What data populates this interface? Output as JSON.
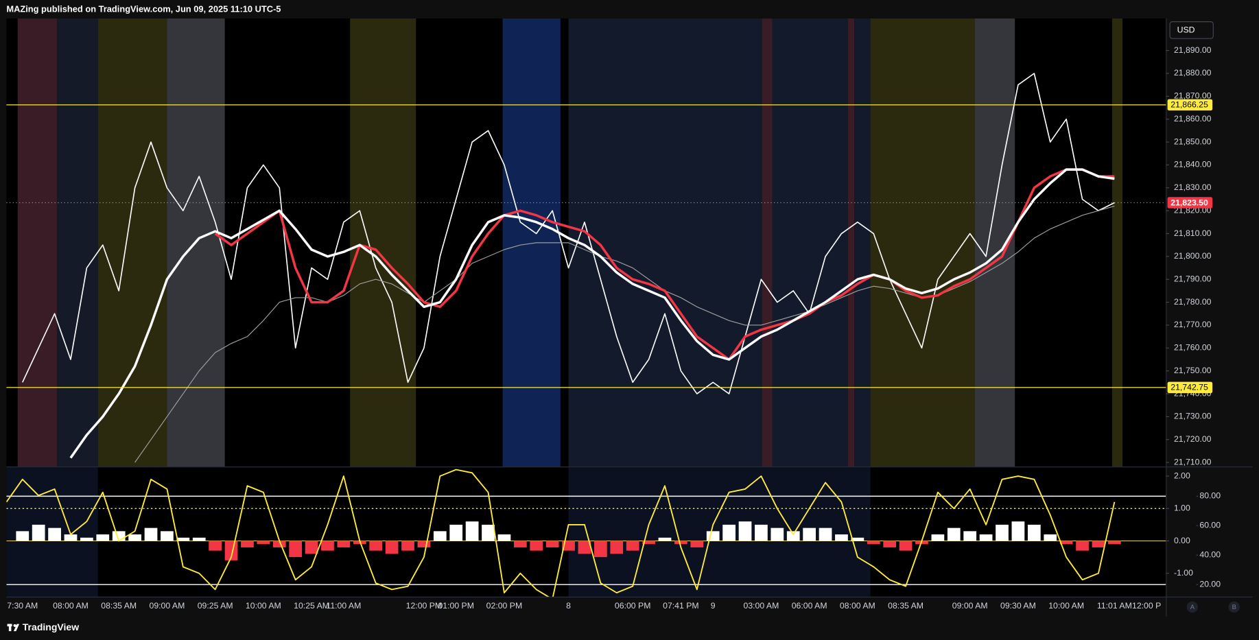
{
  "header": {
    "title": "MAZing published on TradingView.com, Jun 09, 2025 11:10 UTC-5"
  },
  "currency": "USD",
  "footer": {
    "brand": "TradingView",
    "buttons": [
      "A",
      "B"
    ]
  },
  "chart_data": [
    {
      "type": "line",
      "categories": [
        null,
        "7:30 AM",
        null,
        null,
        "08:00 AM",
        null,
        null,
        "08:35 AM",
        null,
        null,
        "09:00 AM",
        null,
        null,
        "09:25 AM",
        null,
        null,
        "10:00 AM",
        null,
        null,
        "10:25 AM",
        null,
        "11:00 AM",
        null,
        null,
        null,
        null,
        "12:00 PM",
        null,
        "01:00 PM",
        null,
        null,
        "02:00 PM",
        null,
        null,
        null,
        "8",
        null,
        null,
        null,
        "06:00 PM",
        null,
        null,
        "07:41 PM",
        null,
        "9",
        null,
        null,
        "03:00 AM",
        null,
        null,
        "06:00 AM",
        null,
        null,
        "08:00 AM",
        null,
        null,
        "08:35 AM",
        null,
        null,
        null,
        "09:00 AM",
        null,
        null,
        "09:30 AM",
        null,
        null,
        "10:00 AM",
        null,
        null,
        "11:01 AM",
        null,
        "12:00 P",
        null
      ],
      "series": [
        {
          "color": "#ffffff",
          "width": 1.4,
          "values": [
            null,
            21745,
            21760,
            21775,
            21755,
            21795,
            21805,
            21785,
            21830,
            21850,
            21830,
            21820,
            21835,
            21815,
            21790,
            21830,
            21840,
            21830,
            21760,
            21795,
            21790,
            21815,
            21820,
            21795,
            21780,
            21745,
            21760,
            21800,
            21825,
            21850,
            21855,
            21840,
            21815,
            21810,
            21820,
            21795,
            21815,
            21790,
            21765,
            21745,
            21755,
            21775,
            21750,
            21740,
            21745,
            21740,
            21765,
            21790,
            21780,
            21785,
            21775,
            21800,
            21810,
            21815,
            21810,
            21790,
            21775,
            21760,
            21790,
            21800,
            21810,
            21800,
            21840,
            21875,
            21880,
            21850,
            21860,
            21825,
            21820,
            21823.5,
            null,
            null,
            null
          ]
        },
        {
          "color": "#9e9e9e",
          "width": 1,
          "values": [
            null,
            null,
            null,
            null,
            null,
            null,
            null,
            null,
            21710,
            21720,
            21730,
            21740,
            21750,
            21758,
            21762,
            21765,
            21772,
            21780,
            21782,
            21782,
            21780,
            21783,
            21788,
            21790,
            21788,
            21784,
            21780,
            21785,
            21790,
            21797,
            21800,
            21803,
            21805,
            21806,
            21806,
            21806,
            21803,
            21800,
            21798,
            21795,
            21790,
            21785,
            21782,
            21778,
            21775,
            21772,
            21770,
            21770,
            21772,
            21774,
            21776,
            21779,
            21782,
            21785,
            21787,
            21786,
            21784,
            21782,
            21783,
            21786,
            21789,
            21793,
            21797,
            21802,
            21808,
            21812,
            21815,
            21818,
            21820,
            21822,
            null,
            null,
            null
          ]
        },
        {
          "color": "#f23645",
          "width": 3,
          "values": [
            null,
            null,
            null,
            null,
            null,
            null,
            null,
            null,
            null,
            null,
            null,
            null,
            null,
            21810,
            21805,
            21810,
            21815,
            21820,
            21795,
            21780,
            21780,
            21785,
            21805,
            21803,
            21795,
            21788,
            21780,
            21778,
            21785,
            21800,
            21810,
            21818,
            21820,
            21818,
            21815,
            21813,
            21811,
            21805,
            21795,
            21790,
            21788,
            21785,
            21775,
            21765,
            21760,
            21755,
            21765,
            21768,
            21770,
            21772,
            21775,
            21780,
            21783,
            21788,
            21792,
            21790,
            21785,
            21782,
            21783,
            21787,
            21790,
            21795,
            21800,
            21815,
            21830,
            21835,
            21838,
            21838,
            21835,
            21835,
            null,
            null,
            null
          ]
        },
        {
          "color": "#ffffff",
          "width": 3,
          "values": [
            null,
            null,
            null,
            null,
            21712,
            21722,
            21730,
            21740,
            21752,
            21770,
            21790,
            21800,
            21808,
            21811,
            21808,
            21812,
            21816,
            21820,
            21812,
            21803,
            21800,
            21802,
            21805,
            21800,
            21792,
            21785,
            21778,
            21780,
            21790,
            21805,
            21815,
            21818,
            21817,
            21815,
            21812,
            21808,
            21805,
            21800,
            21793,
            21788,
            21785,
            21782,
            21772,
            21763,
            21757,
            21755,
            21760,
            21765,
            21768,
            21772,
            21776,
            21780,
            21785,
            21790,
            21792,
            21790,
            21786,
            21784,
            21786,
            21790,
            21793,
            21797,
            21803,
            21815,
            21825,
            21832,
            21838,
            21838,
            21835,
            21834,
            null,
            null,
            null
          ]
        }
      ],
      "ylim": [
        21708.2,
        21904
      ],
      "yticks": [
        {
          "value": 21710,
          "label": "21,710.00"
        },
        {
          "value": 21720,
          "label": "21,720.00"
        },
        {
          "value": 21730,
          "label": "21,730.00"
        },
        {
          "value": 21740,
          "label": "21,740.00"
        },
        {
          "value": 21750,
          "label": "21,750.00"
        },
        {
          "value": 21760,
          "label": "21,760.00"
        },
        {
          "value": 21770,
          "label": "21,770.00"
        },
        {
          "value": 21780,
          "label": "21,780.00"
        },
        {
          "value": 21790,
          "label": "21,790.00"
        },
        {
          "value": 21800,
          "label": "21,800.00"
        },
        {
          "value": 21810,
          "label": "21,810.00"
        },
        {
          "value": 21820,
          "label": "21,820.00"
        },
        {
          "value": 21830,
          "label": "21,830.00"
        },
        {
          "value": 21840,
          "label": "21,840.00"
        },
        {
          "value": 21850,
          "label": "21,850.00"
        },
        {
          "value": 21860,
          "label": "21,860.00"
        },
        {
          "value": 21870,
          "label": "21,870.00"
        },
        {
          "value": 21880,
          "label": "21,880.00"
        },
        {
          "value": 21890,
          "label": "21,890.00"
        }
      ],
      "levels": [
        {
          "value": 21866.25,
          "label": "21,866.25",
          "color": "#ffeb3b"
        },
        {
          "value": 21742.75,
          "label": "21,742.75",
          "color": "#ffeb3b"
        }
      ],
      "last_price": {
        "value": 21823.5,
        "label": "21,823.50",
        "color": "#f23645"
      }
    },
    {
      "type": "line",
      "series": [
        {
          "type": "histogram",
          "color": "#ffffff",
          "down_color": "#f23645",
          "values": [
            0,
            0.3,
            0.5,
            0.4,
            0.2,
            0.1,
            0.2,
            0.3,
            0.2,
            0.4,
            0.3,
            0.1,
            0.1,
            -0.3,
            -0.6,
            -0.2,
            -0.1,
            -0.2,
            -0.5,
            -0.4,
            -0.3,
            -0.2,
            -0.1,
            -0.3,
            -0.4,
            -0.3,
            -0.2,
            0.3,
            0.5,
            0.6,
            0.5,
            0.2,
            -0.2,
            -0.3,
            -0.2,
            -0.3,
            -0.4,
            -0.5,
            -0.4,
            -0.3,
            -0.1,
            0.1,
            -0.1,
            -0.2,
            0.3,
            0.5,
            0.6,
            0.5,
            0.4,
            0.3,
            0.4,
            0.4,
            0.2,
            0.1,
            -0.1,
            -0.2,
            -0.3,
            -0.1,
            0.2,
            0.4,
            0.3,
            0.2,
            0.5,
            0.6,
            0.5,
            0.2,
            -0.1,
            -0.3,
            -0.2,
            -0.1,
            null,
            null,
            null
          ]
        },
        {
          "type": "line",
          "color": "#ffeb3b",
          "width": 1.6,
          "values": [
            1.2,
            1.9,
            1.4,
            1.6,
            0.2,
            0.6,
            1.5,
            0,
            0.3,
            1.9,
            1.6,
            -0.8,
            -1,
            -1.5,
            -0.5,
            1.7,
            1.5,
            0,
            -1.2,
            -0.8,
            0.5,
            2,
            0,
            -1.3,
            -1.5,
            -1.4,
            -0.5,
            2,
            2.2,
            2.1,
            1.5,
            -1.6,
            -1,
            -1.5,
            -1.8,
            0.5,
            0.5,
            -1.3,
            -1.6,
            -1.4,
            0.5,
            1.7,
            -0.2,
            -1.5,
            0.5,
            1.5,
            1.6,
            2,
            1,
            0.2,
            1,
            1.8,
            1.2,
            -0.5,
            -0.8,
            -1.2,
            -1.4,
            0,
            1.5,
            1,
            1.6,
            0.5,
            1.9,
            2,
            1.9,
            0.8,
            -0.5,
            -1.2,
            -1,
            1.2,
            null,
            null,
            null
          ]
        }
      ],
      "ylim": [
        -1.72,
        2.27
      ],
      "yticks": [
        {
          "value": 2,
          "label": "2.00"
        },
        {
          "value": 1,
          "label": "1.00"
        },
        {
          "value": 0,
          "label": "0.00"
        },
        {
          "value": -1,
          "label": "-1.00"
        }
      ],
      "y2lim": [
        11.8,
        99.6
      ],
      "y2ticks": [
        {
          "value": 80,
          "label": "80.00"
        },
        {
          "value": 60,
          "label": "60.00"
        },
        {
          "value": 40,
          "label": "40.00"
        },
        {
          "value": 20,
          "label": "20.00"
        }
      ],
      "levels": [
        {
          "value": 80,
          "axis": "y2",
          "color": "#ffffff",
          "style": "solid"
        },
        {
          "value": 20,
          "axis": "y2",
          "color": "#ffffff",
          "style": "solid"
        },
        {
          "value": 1,
          "color": "#ffeb3b",
          "style": "dotted"
        }
      ]
    }
  ]
}
